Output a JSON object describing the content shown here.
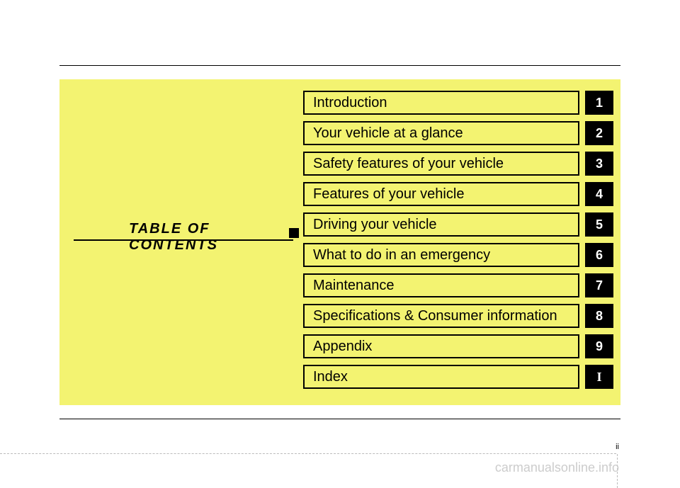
{
  "toc": {
    "title": "TABLE OF CONTENTS",
    "items": [
      {
        "label": "Introduction",
        "tab": "1"
      },
      {
        "label": "Your vehicle at a glance",
        "tab": "2"
      },
      {
        "label": "Safety features of your vehicle",
        "tab": "3"
      },
      {
        "label": "Features of your vehicle",
        "tab": "4"
      },
      {
        "label": "Driving your vehicle",
        "tab": "5"
      },
      {
        "label": "What to do in an emergency",
        "tab": "6"
      },
      {
        "label": "Maintenance",
        "tab": "7"
      },
      {
        "label": "Specifications & Consumer information",
        "tab": "8"
      },
      {
        "label": "Appendix",
        "tab": "9"
      },
      {
        "label": "Index",
        "tab": "I"
      }
    ]
  },
  "page_number": "ii",
  "watermark": "carmanualsonline.info",
  "colors": {
    "panel_bg": "#f3f371",
    "tab_bg": "#000000",
    "tab_text": "#ffffff",
    "border": "#000000",
    "watermark_color": "#cccccc"
  }
}
